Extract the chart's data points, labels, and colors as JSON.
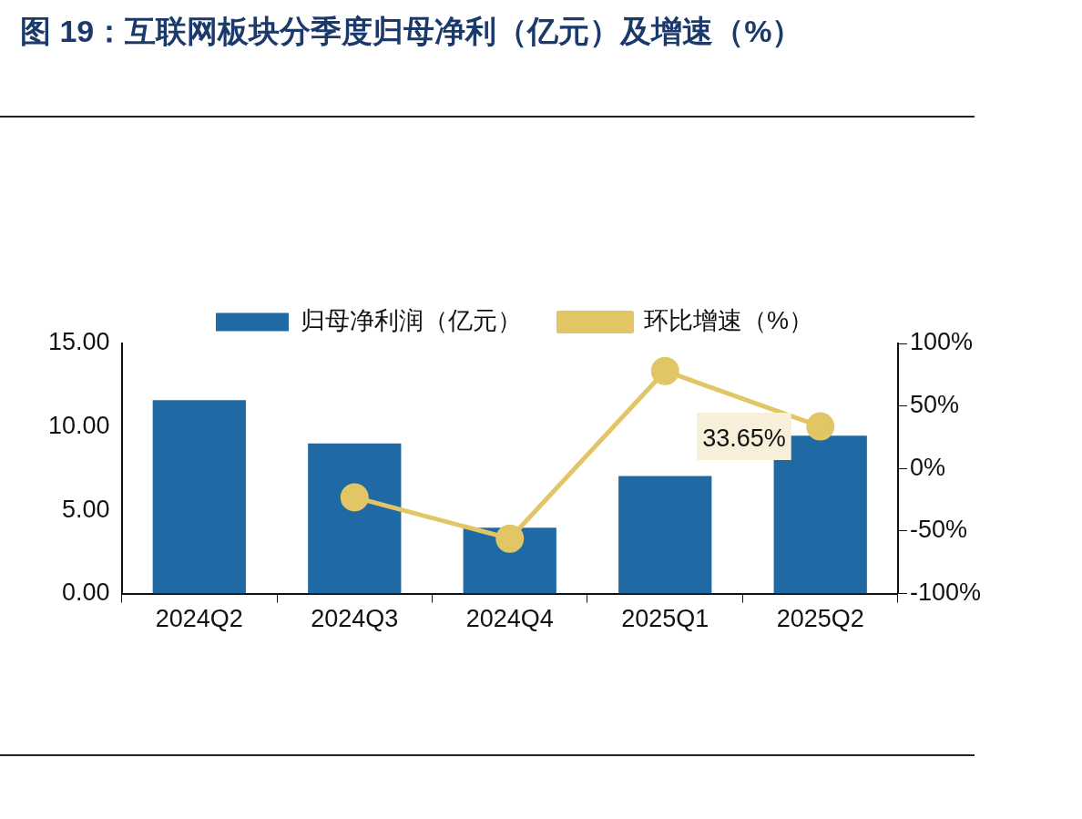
{
  "chart_data": {
    "type": "bar",
    "title": "图 19：互联网板块分季度归母净利（亿元）及增速（%）",
    "categories": [
      "2024Q2",
      "2024Q3",
      "2024Q4",
      "2025Q1",
      "2025Q2"
    ],
    "series": [
      {
        "name": "归母净利润（亿元）",
        "color": "#1f6aa5",
        "values": [
          11.6,
          9.0,
          3.95,
          7.05,
          9.47
        ]
      },
      {
        "type": "line",
        "name": "环比增速（%）",
        "color": "#e2c666",
        "axis": "y2",
        "values": [
          null,
          -23,
          -56,
          78,
          33.65
        ],
        "value_labels": [
          null,
          null,
          null,
          null,
          "33.65%"
        ]
      }
    ],
    "ylim": [
      0,
      15
    ],
    "yticks": [
      {
        "value": 0,
        "label": "0.00"
      },
      {
        "value": 5,
        "label": "5.00"
      },
      {
        "value": 10,
        "label": "10.00"
      },
      {
        "value": 15,
        "label": "15.00"
      }
    ],
    "y2lim": [
      -100,
      100
    ],
    "y2ticks": [
      {
        "value": -100,
        "label": "-100%"
      },
      {
        "value": -50,
        "label": "-50%"
      },
      {
        "value": 0,
        "label": "0%"
      },
      {
        "value": 50,
        "label": "50%"
      },
      {
        "value": 100,
        "label": "100%"
      }
    ],
    "legend": "top",
    "marker": "circle"
  }
}
